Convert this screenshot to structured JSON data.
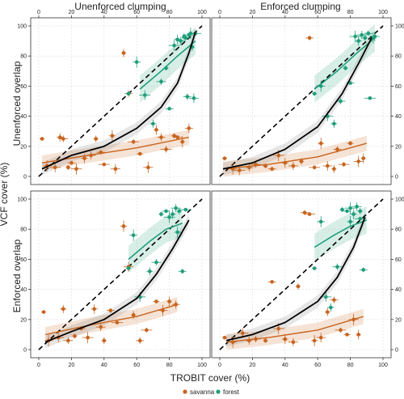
{
  "figure": {
    "xlabel": "TROBIT cover (%)",
    "ylabel": "VCF cover (%)",
    "col_titles": [
      "Unenforced clumping",
      "Enforced clumping"
    ],
    "row_titles": [
      "Unenforced overlap",
      "Enforced overlap"
    ],
    "legend": [
      {
        "name": "savanna",
        "color": "#c8641e"
      },
      {
        "name": "forest",
        "color": "#1f9e7a"
      }
    ],
    "colors": {
      "savanna": "#c8641e",
      "forest": "#1f9e7a",
      "fit": "#000000",
      "one_to_one": "#000000"
    }
  },
  "chart_data": [
    {
      "type": "scatter",
      "panel": "Unenforced clumping / Unenforced overlap",
      "xlim": [
        0,
        100
      ],
      "ylim": [
        0,
        100
      ],
      "grid": true,
      "xticks": [
        0,
        20,
        40,
        60,
        80,
        100
      ],
      "yticks": [
        0,
        20,
        40,
        60,
        80,
        100
      ],
      "series": [
        {
          "name": "savanna",
          "points": [
            [
              2,
              25
            ],
            [
              5,
              7
            ],
            [
              10,
              6
            ],
            [
              13,
              26
            ],
            [
              15,
              25
            ],
            [
              18,
              6
            ],
            [
              20,
              9
            ],
            [
              23,
              5
            ],
            [
              28,
              12
            ],
            [
              32,
              14
            ],
            [
              35,
              25
            ],
            [
              38,
              16
            ],
            [
              40,
              8
            ],
            [
              45,
              27
            ],
            [
              47,
              5
            ],
            [
              52,
              82
            ],
            [
              55,
              55
            ],
            [
              58,
              23
            ],
            [
              62,
              15
            ],
            [
              67,
              6
            ],
            [
              72,
              31
            ],
            [
              75,
              26
            ],
            [
              78,
              18
            ],
            [
              83,
              27
            ],
            [
              85,
              26
            ],
            [
              88,
              23
            ],
            [
              92,
              32
            ]
          ]
        },
        {
          "name": "forest",
          "points": [
            [
              55,
              55
            ],
            [
              60,
              76
            ],
            [
              65,
              54
            ],
            [
              70,
              35
            ],
            [
              75,
              63
            ],
            [
              78,
              72
            ],
            [
              80,
              45
            ],
            [
              83,
              87
            ],
            [
              85,
              91
            ],
            [
              87,
              90
            ],
            [
              89,
              93
            ],
            [
              90,
              92
            ],
            [
              92,
              94
            ],
            [
              93,
              95
            ],
            [
              95,
              52
            ],
            [
              94,
              86
            ],
            [
              91,
              53
            ],
            [
              96,
              95
            ]
          ]
        }
      ],
      "fits": {
        "overall": [
          [
            2,
            5
          ],
          [
            20,
            14
          ],
          [
            40,
            20
          ],
          [
            60,
            32
          ],
          [
            75,
            46
          ],
          [
            85,
            62
          ],
          [
            92,
            82
          ],
          [
            96,
            96
          ]
        ],
        "savanna": [
          [
            2,
            9
          ],
          [
            30,
            14
          ],
          [
            60,
            19
          ],
          [
            92,
            26
          ]
        ],
        "forest": [
          [
            62,
            58
          ],
          [
            75,
            70
          ],
          [
            85,
            80
          ],
          [
            96,
            90
          ]
        ]
      },
      "one_to_one": true
    },
    {
      "type": "scatter",
      "panel": "Enforced clumping / Unenforced overlap",
      "xlim": [
        0,
        100
      ],
      "ylim": [
        0,
        100
      ],
      "grid": true,
      "xticks": [
        0,
        20,
        40,
        60,
        80,
        100
      ],
      "yticks": [
        0,
        20,
        40,
        60,
        80,
        100
      ],
      "series": [
        {
          "name": "savanna",
          "points": [
            [
              3,
              12
            ],
            [
              8,
              5
            ],
            [
              12,
              4
            ],
            [
              18,
              6
            ],
            [
              22,
              8
            ],
            [
              28,
              7
            ],
            [
              32,
              5
            ],
            [
              36,
              14
            ],
            [
              40,
              9
            ],
            [
              45,
              7
            ],
            [
              50,
              10
            ],
            [
              55,
              92
            ],
            [
              58,
              6
            ],
            [
              62,
              22
            ],
            [
              66,
              7
            ],
            [
              70,
              5
            ],
            [
              72,
              18
            ],
            [
              76,
              8
            ],
            [
              80,
              22
            ],
            [
              85,
              10
            ],
            [
              88,
              12
            ]
          ]
        },
        {
          "name": "forest",
          "points": [
            [
              58,
              55
            ],
            [
              62,
              60
            ],
            [
              66,
              40
            ],
            [
              70,
              35
            ],
            [
              74,
              50
            ],
            [
              77,
              72
            ],
            [
              80,
              62
            ],
            [
              83,
              93
            ],
            [
              85,
              90
            ],
            [
              87,
              94
            ],
            [
              89,
              92
            ],
            [
              91,
              95
            ],
            [
              92,
              52
            ],
            [
              94,
              92
            ],
            [
              95,
              93
            ]
          ]
        }
      ],
      "fits": {
        "overall": [
          [
            2,
            5
          ],
          [
            20,
            9
          ],
          [
            40,
            18
          ],
          [
            60,
            33
          ],
          [
            75,
            55
          ],
          [
            85,
            75
          ],
          [
            93,
            92
          ]
        ],
        "savanna": [
          [
            2,
            5
          ],
          [
            30,
            8
          ],
          [
            60,
            13
          ],
          [
            90,
            22
          ]
        ],
        "forest": [
          [
            58,
            58
          ],
          [
            72,
            70
          ],
          [
            84,
            82
          ],
          [
            95,
            92
          ]
        ]
      },
      "one_to_one": true
    },
    {
      "type": "scatter",
      "panel": "Unenforced clumping / Enforced overlap",
      "xlim": [
        0,
        100
      ],
      "ylim": [
        0,
        100
      ],
      "grid": true,
      "xticks": [
        0,
        20,
        40,
        60,
        80,
        100
      ],
      "yticks": [
        0,
        20,
        40,
        60,
        80,
        100
      ],
      "series": [
        {
          "name": "savanna",
          "points": [
            [
              3,
              25
            ],
            [
              6,
              6
            ],
            [
              12,
              8
            ],
            [
              15,
              27
            ],
            [
              18,
              6
            ],
            [
              22,
              9
            ],
            [
              26,
              14
            ],
            [
              30,
              8
            ],
            [
              34,
              27
            ],
            [
              38,
              15
            ],
            [
              40,
              6
            ],
            [
              44,
              26
            ],
            [
              48,
              18
            ],
            [
              52,
              82
            ],
            [
              55,
              55
            ],
            [
              58,
              23
            ],
            [
              62,
              6
            ],
            [
              66,
              13
            ],
            [
              72,
              32
            ],
            [
              76,
              26
            ],
            [
              80,
              32
            ],
            [
              84,
              30
            ]
          ]
        },
        {
          "name": "forest",
          "points": [
            [
              55,
              54
            ],
            [
              58,
              76
            ],
            [
              62,
              35
            ],
            [
              68,
              52
            ],
            [
              72,
              58
            ],
            [
              75,
              90
            ],
            [
              78,
              92
            ],
            [
              80,
              88
            ],
            [
              82,
              90
            ],
            [
              84,
              94
            ],
            [
              86,
              92
            ],
            [
              88,
              52
            ],
            [
              90,
              93
            ],
            [
              85,
              78
            ]
          ]
        }
      ],
      "fits": {
        "overall": [
          [
            4,
            5
          ],
          [
            20,
            12
          ],
          [
            40,
            20
          ],
          [
            60,
            34
          ],
          [
            72,
            50
          ],
          [
            82,
            67
          ],
          [
            92,
            86
          ]
        ],
        "savanna": [
          [
            4,
            10
          ],
          [
            30,
            16
          ],
          [
            60,
            22
          ],
          [
            85,
            30
          ]
        ],
        "forest": [
          [
            55,
            60
          ],
          [
            68,
            72
          ],
          [
            78,
            80
          ],
          [
            88,
            84
          ]
        ]
      },
      "one_to_one": true
    },
    {
      "type": "scatter",
      "panel": "Enforced clumping / Enforced overlap",
      "xlim": [
        0,
        100
      ],
      "ylim": [
        0,
        100
      ],
      "grid": true,
      "xticks": [
        0,
        20,
        40,
        60,
        80,
        100
      ],
      "yticks": [
        0,
        20,
        40,
        60,
        80,
        100
      ],
      "series": [
        {
          "name": "savanna",
          "points": [
            [
              3,
              8
            ],
            [
              8,
              5
            ],
            [
              14,
              11
            ],
            [
              18,
              6
            ],
            [
              22,
              7
            ],
            [
              28,
              6
            ],
            [
              32,
              45
            ],
            [
              36,
              14
            ],
            [
              40,
              7
            ],
            [
              45,
              5
            ],
            [
              48,
              42
            ],
            [
              52,
              91
            ],
            [
              55,
              90
            ],
            [
              58,
              6
            ],
            [
              62,
              8
            ],
            [
              66,
              25
            ],
            [
              70,
              33
            ],
            [
              74,
              13
            ],
            [
              78,
              10
            ],
            [
              82,
              20
            ],
            [
              85,
              10
            ]
          ]
        },
        {
          "name": "forest",
          "points": [
            [
              58,
              54
            ],
            [
              62,
              85
            ],
            [
              65,
              35
            ],
            [
              68,
              28
            ],
            [
              72,
              55
            ],
            [
              75,
              93
            ],
            [
              78,
              92
            ],
            [
              80,
              94
            ],
            [
              82,
              90
            ],
            [
              84,
              95
            ],
            [
              86,
              92
            ],
            [
              88,
              53
            ],
            [
              86,
              87
            ],
            [
              80,
              85
            ]
          ]
        }
      ],
      "fits": {
        "overall": [
          [
            4,
            6
          ],
          [
            20,
            10
          ],
          [
            40,
            18
          ],
          [
            60,
            32
          ],
          [
            72,
            48
          ],
          [
            82,
            68
          ],
          [
            89,
            88
          ]
        ],
        "savanna": [
          [
            4,
            5
          ],
          [
            30,
            8
          ],
          [
            60,
            13
          ],
          [
            88,
            22
          ]
        ],
        "forest": [
          [
            58,
            68
          ],
          [
            70,
            76
          ],
          [
            80,
            82
          ],
          [
            90,
            86
          ]
        ]
      },
      "one_to_one": true
    }
  ]
}
